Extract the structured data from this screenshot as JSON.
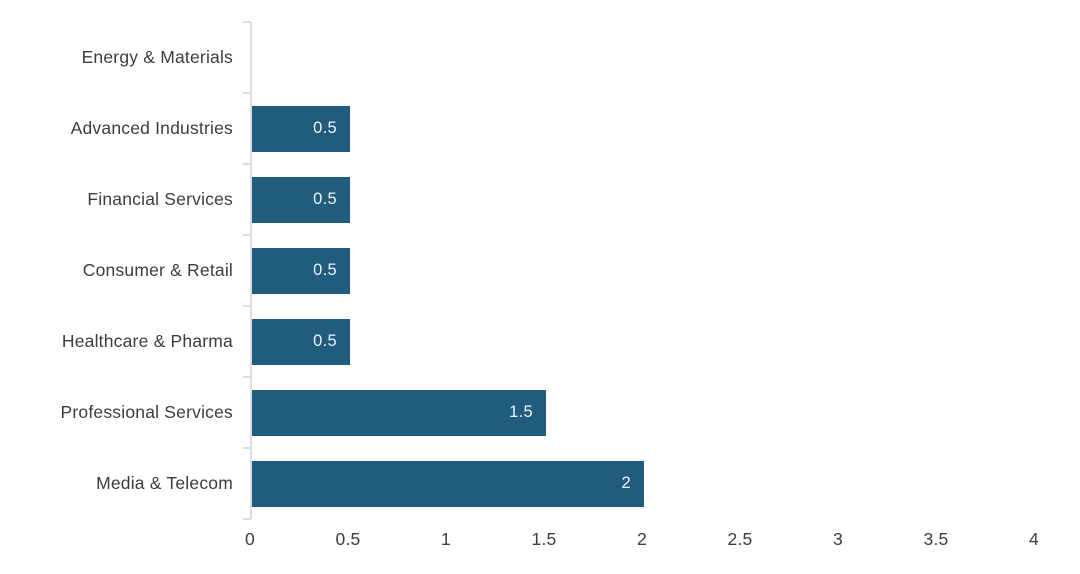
{
  "chart_data": {
    "type": "bar",
    "orientation": "horizontal",
    "title": "",
    "xlabel": "",
    "ylabel": "",
    "categories": [
      "Energy & Materials",
      "Advanced Industries",
      "Financial Services",
      "Consumer & Retail",
      "Healthcare & Pharma",
      "Professional Services",
      "Media & Telecom"
    ],
    "values": [
      0,
      0.5,
      0.5,
      0.5,
      0.5,
      1.5,
      2
    ],
    "value_labels": [
      "",
      "0.5",
      "0.5",
      "0.5",
      "0.5",
      "1.5",
      "2"
    ],
    "xlim": [
      0,
      4
    ],
    "x_ticks": [
      0,
      0.5,
      1,
      1.5,
      2,
      2.5,
      3,
      3.5,
      4
    ],
    "x_tick_labels": [
      "0",
      "0.5",
      "1",
      "1.5",
      "2",
      "2.5",
      "3",
      "3.5",
      "4"
    ],
    "grid": false,
    "legend": false,
    "colors": {
      "bar": "#1f5c7d",
      "bar_value_text": "#eef3f6",
      "axis_line": "#dcdcdc",
      "text": "#3d3d3d",
      "background": "#ffffff"
    }
  }
}
